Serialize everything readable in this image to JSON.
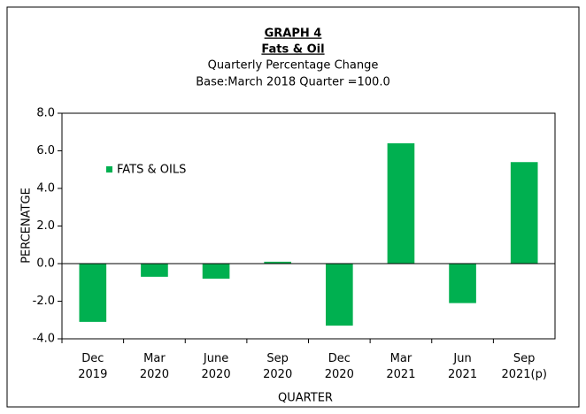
{
  "chart_data": {
    "type": "bar",
    "title": "GRAPH 4",
    "subtitle": "Fats & Oil",
    "subtitle2": "Quarterly Percentage Change",
    "subtitle3": "Base:March 2018 Quarter =100.0",
    "xlabel": "QUARTER",
    "ylabel": "PERCENATGE",
    "categories": [
      "Dec 2019",
      "Mar 2020",
      "June 2020",
      "Sep 2020",
      "Dec 2020",
      "Mar 2021",
      "Jun 2021",
      "Sep 2021(p)"
    ],
    "series": [
      {
        "name": "FATS & OILS",
        "color": "#00b050",
        "values": [
          -3.1,
          -0.7,
          -0.8,
          0.1,
          -3.3,
          6.4,
          -2.1,
          5.4
        ]
      }
    ],
    "ylim": [
      -4,
      8
    ],
    "yticks": [
      {
        "value": -4,
        "label": "-4.0"
      },
      {
        "value": -2,
        "label": "-2.0"
      },
      {
        "value": 0,
        "label": "0.0"
      },
      {
        "value": 2,
        "label": "2.0"
      },
      {
        "value": 4,
        "label": "4.0"
      },
      {
        "value": 6,
        "label": "6.0"
      },
      {
        "value": 8,
        "label": "8.0"
      }
    ],
    "legend": "upper left"
  }
}
